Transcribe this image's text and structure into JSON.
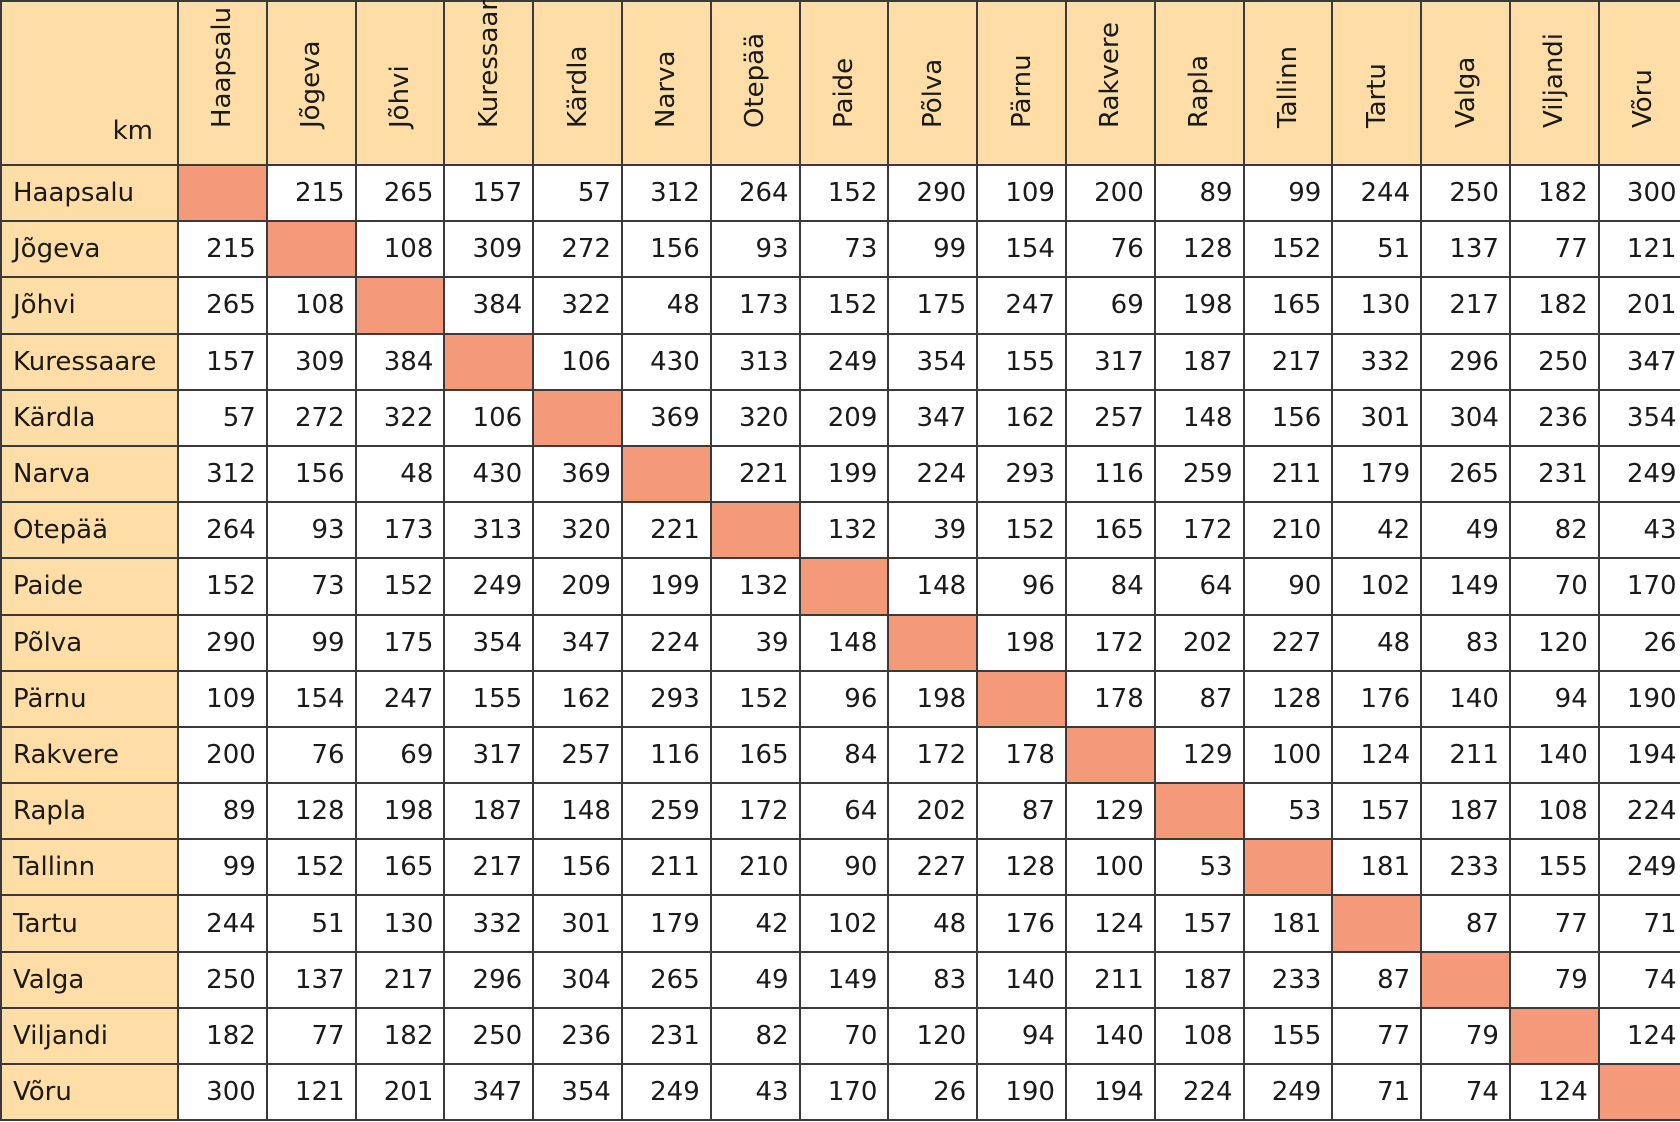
{
  "table": {
    "unit": "km",
    "cities": [
      "Haapsalu",
      "Jõgeva",
      "Jõhvi",
      "Kuressaare",
      "Kärdla",
      "Narva",
      "Otepää",
      "Paide",
      "Põlva",
      "Pärnu",
      "Rakvere",
      "Rapla",
      "Tallinn",
      "Tartu",
      "Valga",
      "Viljandi",
      "Võru"
    ],
    "rows": [
      {
        "name": "Haapsalu",
        "values": [
          "",
          "215",
          "265",
          "157",
          "57",
          "312",
          "264",
          "152",
          "290",
          "109",
          "200",
          "89",
          "99",
          "244",
          "250",
          "182",
          "300"
        ]
      },
      {
        "name": "Jõgeva",
        "values": [
          "215",
          "",
          "108",
          "309",
          "272",
          "156",
          "93",
          "73",
          "99",
          "154",
          "76",
          "128",
          "152",
          "51",
          "137",
          "77",
          "121"
        ]
      },
      {
        "name": "Jõhvi",
        "values": [
          "265",
          "108",
          "",
          "384",
          "322",
          "48",
          "173",
          "152",
          "175",
          "247",
          "69",
          "198",
          "165",
          "130",
          "217",
          "182",
          "201"
        ]
      },
      {
        "name": "Kuressaare",
        "values": [
          "157",
          "309",
          "384",
          "",
          "106",
          "430",
          "313",
          "249",
          "354",
          "155",
          "317",
          "187",
          "217",
          "332",
          "296",
          "250",
          "347"
        ]
      },
      {
        "name": "Kärdla",
        "values": [
          "57",
          "272",
          "322",
          "106",
          "",
          "369",
          "320",
          "209",
          "347",
          "162",
          "257",
          "148",
          "156",
          "301",
          "304",
          "236",
          "354"
        ]
      },
      {
        "name": "Narva",
        "values": [
          "312",
          "156",
          "48",
          "430",
          "369",
          "",
          "221",
          "199",
          "224",
          "293",
          "116",
          "259",
          "211",
          "179",
          "265",
          "231",
          "249"
        ]
      },
      {
        "name": "Otepää",
        "values": [
          "264",
          "93",
          "173",
          "313",
          "320",
          "221",
          "",
          "132",
          "39",
          "152",
          "165",
          "172",
          "210",
          "42",
          "49",
          "82",
          "43"
        ]
      },
      {
        "name": "Paide",
        "values": [
          "152",
          "73",
          "152",
          "249",
          "209",
          "199",
          "132",
          "",
          "148",
          "96",
          "84",
          "64",
          "90",
          "102",
          "149",
          "70",
          "170"
        ]
      },
      {
        "name": "Põlva",
        "values": [
          "290",
          "99",
          "175",
          "354",
          "347",
          "224",
          "39",
          "148",
          "",
          "198",
          "172",
          "202",
          "227",
          "48",
          "83",
          "120",
          "26"
        ]
      },
      {
        "name": "Pärnu",
        "values": [
          "109",
          "154",
          "247",
          "155",
          "162",
          "293",
          "152",
          "96",
          "198",
          "",
          "178",
          "87",
          "128",
          "176",
          "140",
          "94",
          "190"
        ]
      },
      {
        "name": "Rakvere",
        "values": [
          "200",
          "76",
          "69",
          "317",
          "257",
          "116",
          "165",
          "84",
          "172",
          "178",
          "",
          "129",
          "100",
          "124",
          "211",
          "140",
          "194"
        ]
      },
      {
        "name": "Rapla",
        "values": [
          "89",
          "128",
          "198",
          "187",
          "148",
          "259",
          "172",
          "64",
          "202",
          "87",
          "129",
          "",
          "53",
          "157",
          "187",
          "108",
          "224"
        ]
      },
      {
        "name": "Tallinn",
        "values": [
          "99",
          "152",
          "165",
          "217",
          "156",
          "211",
          "210",
          "90",
          "227",
          "128",
          "100",
          "53",
          "",
          "181",
          "233",
          "155",
          "249"
        ]
      },
      {
        "name": "Tartu",
        "values": [
          "244",
          "51",
          "130",
          "332",
          "301",
          "179",
          "42",
          "102",
          "48",
          "176",
          "124",
          "157",
          "181",
          "",
          "87",
          "77",
          "71"
        ]
      },
      {
        "name": "Valga",
        "values": [
          "250",
          "137",
          "217",
          "296",
          "304",
          "265",
          "49",
          "149",
          "83",
          "140",
          "211",
          "187",
          "233",
          "87",
          "",
          "79",
          "74"
        ]
      },
      {
        "name": "Viljandi",
        "values": [
          "182",
          "77",
          "182",
          "250",
          "236",
          "231",
          "82",
          "70",
          "120",
          "94",
          "140",
          "108",
          "155",
          "77",
          "79",
          "",
          "124"
        ]
      },
      {
        "name": "Võru",
        "values": [
          "300",
          "121",
          "201",
          "347",
          "354",
          "249",
          "43",
          "170",
          "26",
          "190",
          "194",
          "224",
          "249",
          "71",
          "74",
          "124",
          ""
        ]
      }
    ]
  },
  "colors": {
    "header_bg": "#fedda6",
    "diagonal_bg": "#f49a7b",
    "cell_bg": "#ffffff",
    "border": "#3a3a3a"
  }
}
